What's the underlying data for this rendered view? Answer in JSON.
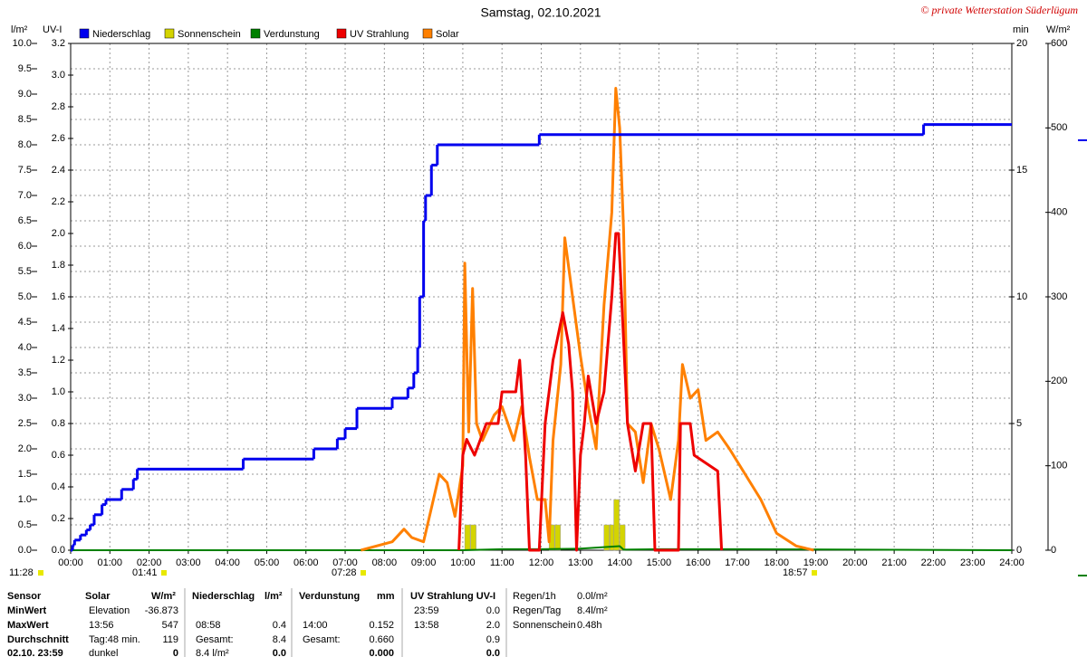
{
  "chart_data": {
    "type": "line",
    "title": "Samstag, 02.10.2021",
    "copyright": "© private Wetterstation Süderlügum",
    "xlim": [
      0,
      24
    ],
    "xticks": [
      {
        "value": 0,
        "label": "00:00"
      },
      {
        "value": 1,
        "label": "01:00"
      },
      {
        "value": 2,
        "label": "02:00"
      },
      {
        "value": 3,
        "label": "03:00"
      },
      {
        "value": 4,
        "label": "04:00"
      },
      {
        "value": 5,
        "label": "05:00"
      },
      {
        "value": 6,
        "label": "06:00"
      },
      {
        "value": 7,
        "label": "07:00"
      },
      {
        "value": 8,
        "label": "08:00"
      },
      {
        "value": 9,
        "label": "09:00"
      },
      {
        "value": 10,
        "label": "10:00"
      },
      {
        "value": 11,
        "label": "11:00"
      },
      {
        "value": 12,
        "label": "12:00"
      },
      {
        "value": 13,
        "label": "13:00"
      },
      {
        "value": 14,
        "label": "14:00"
      },
      {
        "value": 15,
        "label": "15:00"
      },
      {
        "value": 16,
        "label": "16:00"
      },
      {
        "value": 17,
        "label": "17:00"
      },
      {
        "value": 18,
        "label": "18:00"
      },
      {
        "value": 19,
        "label": "19:00"
      },
      {
        "value": 20,
        "label": "20:00"
      },
      {
        "value": 21,
        "label": "21:00"
      },
      {
        "value": 22,
        "label": "22:00"
      },
      {
        "value": 23,
        "label": "23:00"
      },
      {
        "value": 24,
        "label": "24:00"
      }
    ],
    "grid": true,
    "axes": [
      {
        "label": "l/m²",
        "side": "left",
        "color": "#0000cc",
        "lim": [
          0,
          10
        ],
        "ticks": [
          {
            "value": 0,
            "label": "0.0"
          },
          0.5,
          {
            "value": 1,
            "label": "1.0"
          },
          1.5,
          {
            "value": 2,
            "label": "2.0"
          },
          2.5,
          {
            "value": 3,
            "label": "3.0"
          },
          3.5,
          {
            "value": 4,
            "label": "4.0"
          },
          4.5,
          {
            "value": 5,
            "label": "5.0"
          },
          5.5,
          {
            "value": 6,
            "label": "6.0"
          },
          6.5,
          {
            "value": 7,
            "label": "7.0"
          },
          7.5,
          {
            "value": 8,
            "label": "8.0"
          },
          8.5,
          {
            "value": 9,
            "label": "9.0"
          },
          9.5,
          {
            "value": 10,
            "label": "10.0"
          }
        ]
      },
      {
        "label": "UV-I",
        "side": "left",
        "color": "#cc0000",
        "lim": [
          0,
          3.2
        ],
        "ticks": [
          {
            "value": 0,
            "label": "0.0"
          },
          0.2,
          0.4,
          0.6,
          0.8,
          {
            "value": 1,
            "label": "1.0"
          },
          1.2,
          1.4,
          1.6,
          1.8,
          {
            "value": 2,
            "label": "2.0"
          },
          2.2,
          2.4,
          2.6,
          2.8,
          {
            "value": 3,
            "label": "3.0"
          },
          3.2
        ]
      },
      {
        "label": "min",
        "side": "right",
        "color": "#c8c800",
        "lim": [
          0,
          20
        ],
        "ticks": [
          0,
          5,
          10,
          15,
          20
        ]
      },
      {
        "label": "W/m²",
        "side": "right",
        "color": "#333333",
        "lim": [
          0,
          600
        ],
        "ticks": [
          0,
          100,
          200,
          300,
          400,
          500,
          600
        ]
      }
    ],
    "series": [
      {
        "name": "Niederschlag",
        "color": "#0000ee",
        "axis": 0,
        "style": "step",
        "x": [
          0,
          0.05,
          0.1,
          0.25,
          0.4,
          0.5,
          0.6,
          0.8,
          0.9,
          1.3,
          1.6,
          1.7,
          4.4,
          6.2,
          6.8,
          7.0,
          7.3,
          8.2,
          8.6,
          8.75,
          8.85,
          8.9,
          9.0,
          9.05,
          9.2,
          9.35,
          11.95,
          21.75
        ],
        "values": [
          0,
          0.1,
          0.2,
          0.3,
          0.4,
          0.5,
          0.7,
          0.9,
          1.0,
          1.2,
          1.4,
          1.6,
          1.8,
          2.0,
          2.2,
          2.4,
          2.8,
          3.0,
          3.2,
          3.5,
          4.0,
          5.0,
          6.5,
          7.0,
          7.6,
          8.0,
          8.2,
          8.4
        ]
      },
      {
        "name": "Sonnenschein",
        "color": "#d4d400",
        "axis": 2,
        "style": "bars",
        "x": [
          10.05,
          10.2,
          12.2,
          12.35,
          13.6,
          13.75,
          13.85,
          14.0
        ],
        "values": [
          1,
          1,
          1,
          1,
          1,
          1,
          2,
          1
        ]
      },
      {
        "name": "Verdunstung",
        "color": "#008000",
        "axis": 0,
        "style": "line",
        "x": [
          0,
          10,
          11,
          12,
          13,
          14,
          14.1,
          15,
          16,
          17,
          24
        ],
        "values": [
          0,
          0,
          0.02,
          0.02,
          0.03,
          0.08,
          0.01,
          0.02,
          0.02,
          0.02,
          0
        ]
      },
      {
        "name": "UV Strahlung",
        "color": "#ee0000",
        "axis": 1,
        "style": "line",
        "x": [
          9.9,
          10.0,
          10.1,
          10.3,
          10.6,
          10.9,
          11.0,
          11.35,
          11.45,
          11.6,
          11.7,
          11.95,
          12.1,
          12.3,
          12.55,
          12.7,
          12.8,
          12.9,
          13.0,
          13.1,
          13.2,
          13.4,
          13.6,
          13.8,
          13.9,
          13.97,
          14.05,
          14.2,
          14.4,
          14.6,
          14.8,
          14.9,
          15.5,
          15.55,
          15.8,
          15.9,
          16.5,
          16.6
        ],
        "values": [
          0,
          0.6,
          0.7,
          0.6,
          0.8,
          0.8,
          1.0,
          1.0,
          1.2,
          0.6,
          0,
          0,
          0.8,
          1.2,
          1.5,
          1.3,
          1.0,
          0,
          0.6,
          0.8,
          1.1,
          0.8,
          1.0,
          1.6,
          2.0,
          2.0,
          1.6,
          0.8,
          0.5,
          0.8,
          0.8,
          0,
          0,
          0.8,
          0.8,
          0.6,
          0.5,
          0
        ]
      },
      {
        "name": "Solar",
        "color": "#ff8000",
        "axis": 3,
        "style": "line",
        "x": [
          7.4,
          7.8,
          8.2,
          8.5,
          8.7,
          9.0,
          9.2,
          9.4,
          9.6,
          9.8,
          10.0,
          10.05,
          10.15,
          10.25,
          10.35,
          10.5,
          10.8,
          11.0,
          11.3,
          11.5,
          11.7,
          11.9,
          12.1,
          12.2,
          12.3,
          12.5,
          12.6,
          12.8,
          13.0,
          13.2,
          13.4,
          13.6,
          13.8,
          13.9,
          14.0,
          14.1,
          14.2,
          14.4,
          14.6,
          14.8,
          15.0,
          15.3,
          15.5,
          15.6,
          15.8,
          16.0,
          16.2,
          16.5,
          16.8,
          17.2,
          17.6,
          18.0,
          18.5,
          18.95
        ],
        "values": [
          0,
          5,
          10,
          25,
          15,
          10,
          50,
          90,
          80,
          40,
          100,
          340,
          140,
          310,
          150,
          130,
          160,
          170,
          130,
          170,
          110,
          60,
          60,
          10,
          130,
          220,
          370,
          300,
          230,
          170,
          120,
          290,
          400,
          547,
          500,
          380,
          150,
          140,
          80,
          150,
          120,
          60,
          130,
          220,
          180,
          190,
          130,
          140,
          120,
          90,
          60,
          20,
          5,
          0
        ]
      }
    ],
    "annotations": [
      "11:28",
      "01:41",
      "07:28",
      "18:57"
    ]
  },
  "stats": {
    "row_labels": [
      "Sensor",
      "MinWert",
      "MaxWert",
      "Durchschnitt",
      "02.10. 23:59"
    ],
    "groups": [
      {
        "name": "Solar",
        "unit": "W/m²",
        "cells": [
          [
            "Elevation",
            "-36.873"
          ],
          [
            "13:56",
            "547"
          ],
          [
            "Tag:48 min.",
            "119"
          ],
          [
            "dunkel",
            "0"
          ]
        ]
      },
      {
        "name": "Niederschlag",
        "unit": "l/m²",
        "cells": [
          null,
          [
            "08:58",
            "0.4"
          ],
          [
            "Gesamt:",
            "8.4"
          ],
          [
            "8.4 l/m²",
            "0.0"
          ]
        ]
      },
      {
        "name": "Verdunstung",
        "unit": "mm",
        "cells": [
          null,
          [
            "14:00",
            "0.152"
          ],
          [
            "Gesamt:",
            "0.660"
          ],
          [
            null,
            "0.000"
          ]
        ]
      },
      {
        "name": "UV Strahlung UV-I",
        "unit": null,
        "cells": [
          [
            "23:59",
            "0.0"
          ],
          [
            "13:58",
            "2.0"
          ],
          [
            null,
            "0.9"
          ],
          [
            null,
            "0.0"
          ]
        ]
      }
    ],
    "extra": [
      [
        "Regen/1h",
        "0.0l/m²"
      ],
      [
        "Regen/Tag",
        "8.4l/m²"
      ],
      [
        "Sonnenschein",
        "0.48h"
      ]
    ]
  }
}
